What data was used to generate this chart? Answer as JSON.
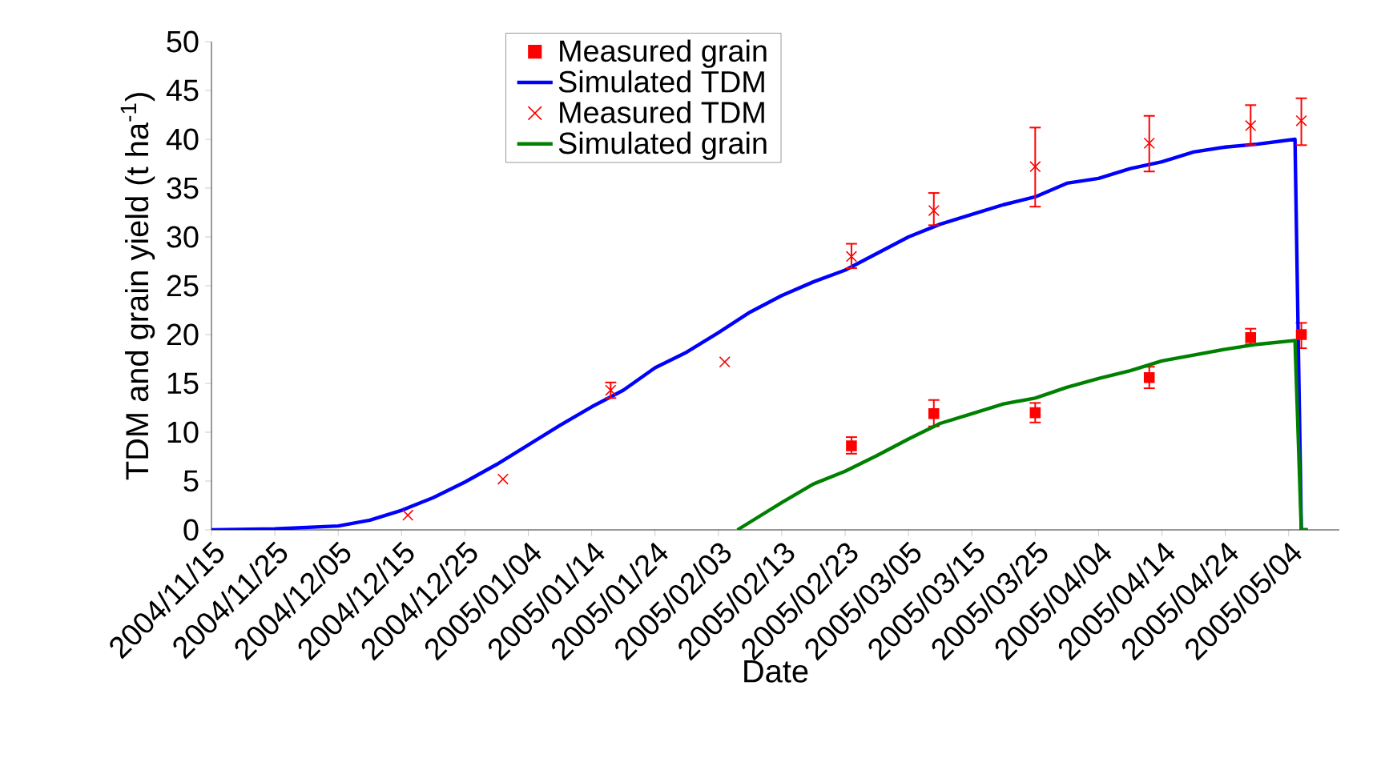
{
  "chart_data": {
    "type": "line",
    "xlabel": "Date",
    "ylabel": "TDM and grain yield  (t ha$^{-1}$)",
    "xlim": [
      "2004-11-15",
      "2005-05-12"
    ],
    "xticks": [
      {
        "value": "2004-11-15",
        "label": "2004/11/15"
      },
      {
        "value": "2004-11-25",
        "label": "2004/11/25"
      },
      {
        "value": "2004-12-05",
        "label": "2004/12/05"
      },
      {
        "value": "2004-12-15",
        "label": "2004/12/15"
      },
      {
        "value": "2004-12-25",
        "label": "2004/12/25"
      },
      {
        "value": "2005-01-04",
        "label": "2005/01/04"
      },
      {
        "value": "2005-01-14",
        "label": "2005/01/14"
      },
      {
        "value": "2005-01-24",
        "label": "2005/01/24"
      },
      {
        "value": "2005-02-03",
        "label": "2005/02/03"
      },
      {
        "value": "2005-02-13",
        "label": "2005/02/13"
      },
      {
        "value": "2005-02-23",
        "label": "2005/02/23"
      },
      {
        "value": "2005-03-05",
        "label": "2005/03/05"
      },
      {
        "value": "2005-03-15",
        "label": "2005/03/15"
      },
      {
        "value": "2005-03-25",
        "label": "2005/03/25"
      },
      {
        "value": "2005-04-04",
        "label": "2005/04/04"
      },
      {
        "value": "2005-04-14",
        "label": "2005/04/14"
      },
      {
        "value": "2005-04-24",
        "label": "2005/04/24"
      },
      {
        "value": "2005-05-04",
        "label": "2005/05/04"
      }
    ],
    "ylim": [
      0,
      50
    ],
    "yticks": [
      0,
      5,
      10,
      15,
      20,
      25,
      30,
      35,
      40,
      45,
      50
    ],
    "legend": "top",
    "series": [
      {
        "name": "Measured grain",
        "type": "scatter",
        "marker": "square",
        "color": "#ff0000",
        "x": [
          "2005-02-24",
          "2005-03-09",
          "2005-03-25",
          "2005-04-12",
          "2005-04-28",
          "2005-05-06"
        ],
        "values": [
          8.6,
          11.9,
          12.0,
          15.6,
          19.7,
          20.0
        ],
        "errors": [
          [
            7.8,
            9.5
          ],
          [
            10.6,
            13.3
          ],
          [
            11.0,
            13.0
          ],
          [
            14.5,
            16.7
          ],
          [
            19.0,
            20.6
          ],
          [
            18.6,
            21.2
          ]
        ]
      },
      {
        "name": "Simulated TDM",
        "color": "#0000ff",
        "x": [
          "2004-11-15",
          "2004-11-25",
          "2004-12-05",
          "2004-12-10",
          "2004-12-15",
          "2004-12-20",
          "2004-12-25",
          "2004-12-30",
          "2005-01-04",
          "2005-01-09",
          "2005-01-14",
          "2005-01-19",
          "2005-01-24",
          "2005-01-29",
          "2005-02-03",
          "2005-02-08",
          "2005-02-13",
          "2005-02-18",
          "2005-02-23",
          "2005-02-28",
          "2005-03-05",
          "2005-03-10",
          "2005-03-15",
          "2005-03-20",
          "2005-03-25",
          "2005-03-30",
          "2005-04-04",
          "2005-04-09",
          "2005-04-14",
          "2005-04-19",
          "2005-04-24",
          "2005-04-29",
          "2005-05-05",
          "2005-05-06",
          "2005-05-07"
        ],
        "values": [
          0,
          0.1,
          0.4,
          1.0,
          2.0,
          3.3,
          4.9,
          6.7,
          8.7,
          10.7,
          12.6,
          14.3,
          16.6,
          18.2,
          20.2,
          22.3,
          24.0,
          25.4,
          26.6,
          28.3,
          30.0,
          31.3,
          32.3,
          33.3,
          34.1,
          35.5,
          36.0,
          37.0,
          37.7,
          38.7,
          39.2,
          39.5,
          40.0,
          0,
          0
        ]
      },
      {
        "name": "Measured TDM",
        "type": "scatter",
        "marker": "cross",
        "color": "#ff0000",
        "x": [
          "2004-12-16",
          "2004-12-31",
          "2005-01-17",
          "2005-02-04",
          "2005-02-24",
          "2005-03-09",
          "2005-03-25",
          "2005-04-12",
          "2005-04-28",
          "2005-05-06"
        ],
        "values": [
          1.5,
          5.2,
          14.3,
          17.2,
          28.0,
          32.7,
          37.2,
          39.6,
          41.4,
          41.9
        ],
        "errors": [
          null,
          null,
          [
            13.5,
            15.1
          ],
          null,
          [
            26.8,
            29.3
          ],
          [
            31.2,
            34.5
          ],
          [
            33.1,
            41.2
          ],
          [
            36.7,
            42.4
          ],
          [
            39.4,
            43.5
          ],
          [
            39.4,
            44.2
          ]
        ]
      },
      {
        "name": "Simulated grain",
        "color": "#008000",
        "x": [
          "2005-02-06",
          "2005-02-08",
          "2005-02-13",
          "2005-02-18",
          "2005-02-23",
          "2005-02-28",
          "2005-03-05",
          "2005-03-10",
          "2005-03-15",
          "2005-03-20",
          "2005-03-25",
          "2005-03-30",
          "2005-04-04",
          "2005-04-09",
          "2005-04-14",
          "2005-04-19",
          "2005-04-24",
          "2005-04-29",
          "2005-05-05",
          "2005-05-06",
          "2005-05-07"
        ],
        "values": [
          0,
          0.8,
          2.8,
          4.7,
          6.0,
          7.6,
          9.3,
          10.9,
          11.9,
          12.9,
          13.5,
          14.6,
          15.5,
          16.3,
          17.3,
          17.9,
          18.5,
          19.0,
          19.4,
          0,
          0
        ]
      }
    ]
  }
}
